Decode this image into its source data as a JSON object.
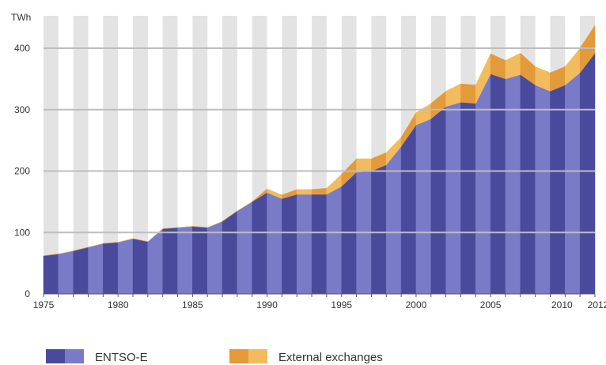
{
  "chart_data": {
    "type": "area",
    "unit_label": "TWh",
    "x": [
      1975,
      1976,
      1977,
      1978,
      1979,
      1980,
      1981,
      1982,
      1983,
      1984,
      1985,
      1986,
      1987,
      1988,
      1989,
      1990,
      1991,
      1992,
      1993,
      1994,
      1995,
      1996,
      1997,
      1998,
      1999,
      2000,
      2001,
      2002,
      2003,
      2004,
      2005,
      2006,
      2007,
      2008,
      2009,
      2010,
      2011,
      2012
    ],
    "x_tick_labels": [
      "1975",
      "1980",
      "1985",
      "1990",
      "1995",
      "2000",
      "2005",
      "2010",
      "2012"
    ],
    "y_ticks": [
      0,
      100,
      200,
      300,
      400
    ],
    "ylim": [
      0,
      450
    ],
    "xlim": [
      1975,
      2012
    ],
    "series": [
      {
        "name": "ENTSO-E",
        "values": [
          62,
          65,
          70,
          76,
          82,
          84,
          90,
          85,
          106,
          108,
          110,
          108,
          118,
          135,
          150,
          165,
          155,
          162,
          162,
          162,
          175,
          198,
          200,
          210,
          240,
          275,
          285,
          305,
          312,
          310,
          358,
          350,
          357,
          340,
          330,
          340,
          360,
          392
        ],
        "colors": [
          "#4a4a9c",
          "#7a7bc8"
        ]
      },
      {
        "name": "External exchanges",
        "values": [
          0,
          0,
          0,
          0,
          0,
          0,
          0,
          0,
          0,
          0,
          0,
          0,
          0,
          0,
          0,
          6,
          6,
          8,
          8,
          10,
          20,
          22,
          20,
          20,
          15,
          20,
          25,
          25,
          30,
          30,
          33,
          30,
          35,
          30,
          30,
          30,
          40,
          45
        ],
        "colors": [
          "#e39a3a",
          "#f2bc5e"
        ]
      }
    ],
    "grid": true,
    "legend_position": "bottom-left"
  }
}
